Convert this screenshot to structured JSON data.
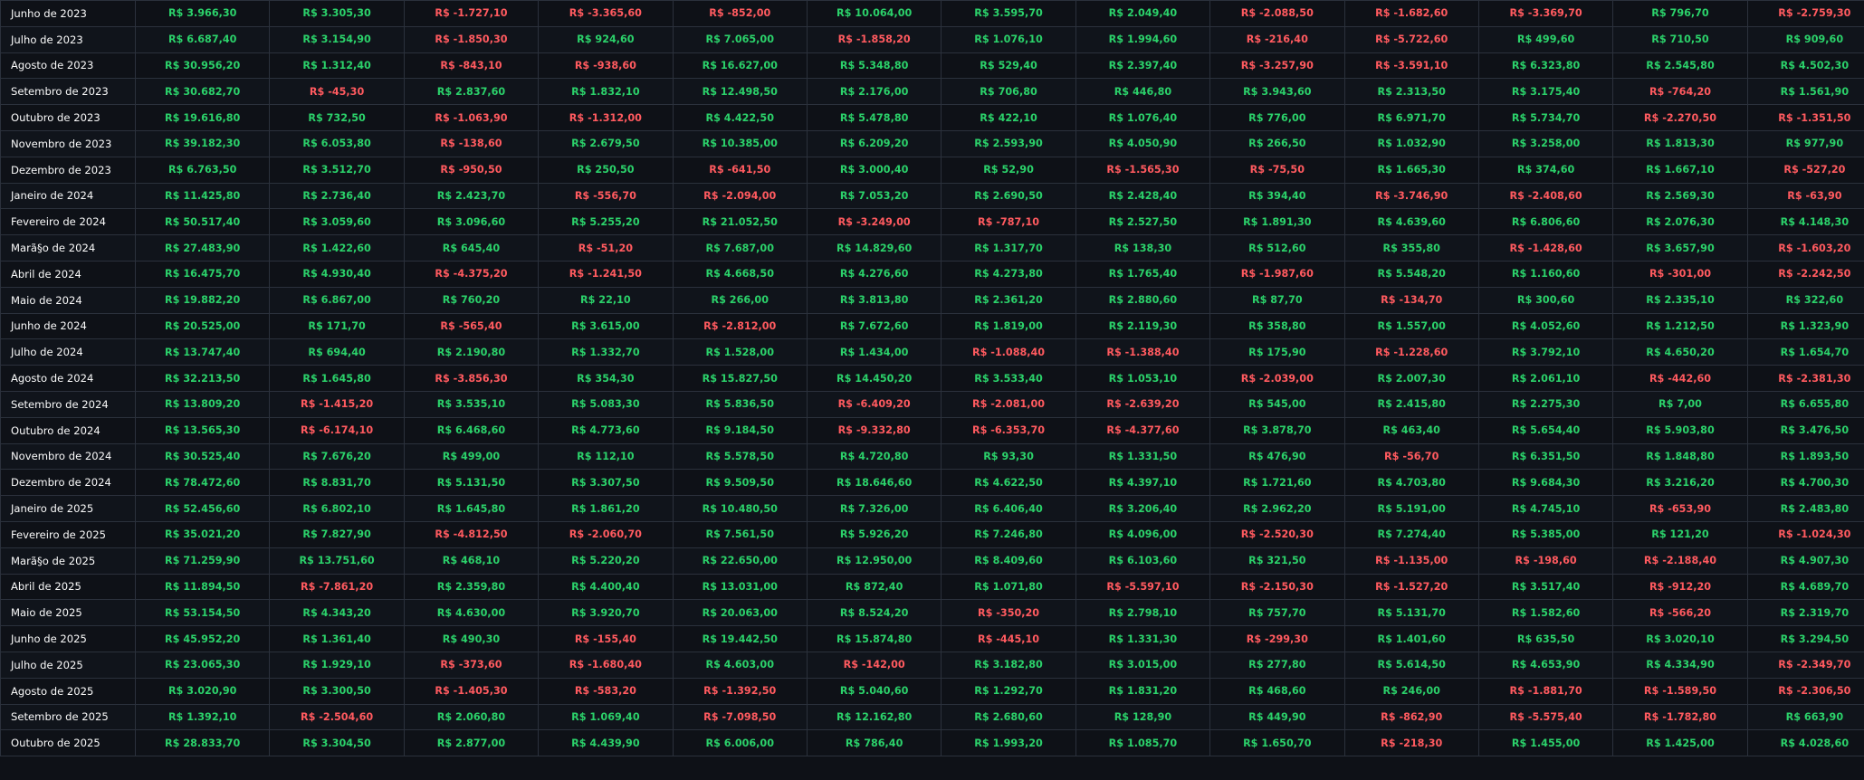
{
  "colors": {
    "background": "#0e1117",
    "positive": "#2bd16a",
    "negative": "#ff5a5f",
    "month_text": "#fafafa",
    "grid": "#2b313c"
  },
  "rows": [
    {
      "month": "Junho de 2023",
      "values": [
        "R$ 3.966,30",
        "R$ 3.305,30",
        "R$ -1.727,10",
        "R$ -3.365,60",
        "R$ -852,00",
        "R$ 10.064,00",
        "R$ 3.595,70",
        "R$ 2.049,40",
        "R$ -2.088,50",
        "R$ -1.682,60",
        "R$ -3.369,70",
        "R$ 796,70",
        "R$ -2.759,30"
      ]
    },
    {
      "month": "Julho de 2023",
      "values": [
        "R$ 6.687,40",
        "R$ 3.154,90",
        "R$ -1.850,30",
        "R$ 924,60",
        "R$ 7.065,00",
        "R$ -1.858,20",
        "R$ 1.076,10",
        "R$ 1.994,60",
        "R$ -216,40",
        "R$ -5.722,60",
        "R$ 499,60",
        "R$ 710,50",
        "R$ 909,60"
      ]
    },
    {
      "month": "Agosto de 2023",
      "values": [
        "R$ 30.956,20",
        "R$ 1.312,40",
        "R$ -843,10",
        "R$ -938,60",
        "R$ 16.627,00",
        "R$ 5.348,80",
        "R$ 529,40",
        "R$ 2.397,40",
        "R$ -3.257,90",
        "R$ -3.591,10",
        "R$ 6.323,80",
        "R$ 2.545,80",
        "R$ 4.502,30"
      ]
    },
    {
      "month": "Setembro de 2023",
      "values": [
        "R$ 30.682,70",
        "R$ -45,30",
        "R$ 2.837,60",
        "R$ 1.832,10",
        "R$ 12.498,50",
        "R$ 2.176,00",
        "R$ 706,80",
        "R$ 446,80",
        "R$ 3.943,60",
        "R$ 2.313,50",
        "R$ 3.175,40",
        "R$ -764,20",
        "R$ 1.561,90"
      ]
    },
    {
      "month": "Outubro de 2023",
      "values": [
        "R$ 19.616,80",
        "R$ 732,50",
        "R$ -1.063,90",
        "R$ -1.312,00",
        "R$ 4.422,50",
        "R$ 5.478,80",
        "R$ 422,10",
        "R$ 1.076,40",
        "R$ 776,00",
        "R$ 6.971,70",
        "R$ 5.734,70",
        "R$ -2.270,50",
        "R$ -1.351,50"
      ]
    },
    {
      "month": "Novembro de 2023",
      "values": [
        "R$ 39.182,30",
        "R$ 6.053,80",
        "R$ -138,60",
        "R$ 2.679,50",
        "R$ 10.385,00",
        "R$ 6.209,20",
        "R$ 2.593,90",
        "R$ 4.050,90",
        "R$ 266,50",
        "R$ 1.032,90",
        "R$ 3.258,00",
        "R$ 1.813,30",
        "R$ 977,90"
      ]
    },
    {
      "month": "Dezembro de 2023",
      "values": [
        "R$ 6.763,50",
        "R$ 3.512,70",
        "R$ -950,50",
        "R$ 250,50",
        "R$ -641,50",
        "R$ 3.000,40",
        "R$ 52,90",
        "R$ -1.565,30",
        "R$ -75,50",
        "R$ 1.665,30",
        "R$ 374,60",
        "R$ 1.667,10",
        "R$ -527,20"
      ]
    },
    {
      "month": "Janeiro de 2024",
      "values": [
        "R$ 11.425,80",
        "R$ 2.736,40",
        "R$ 2.423,70",
        "R$ -556,70",
        "R$ -2.094,00",
        "R$ 7.053,20",
        "R$ 2.690,50",
        "R$ 2.428,40",
        "R$ 394,40",
        "R$ -3.746,90",
        "R$ -2.408,60",
        "R$ 2.569,30",
        "R$ -63,90"
      ]
    },
    {
      "month": "Fevereiro de 2024",
      "values": [
        "R$ 50.517,40",
        "R$ 3.059,60",
        "R$ 3.096,60",
        "R$ 5.255,20",
        "R$ 21.052,50",
        "R$ -3.249,00",
        "R$ -787,10",
        "R$ 2.527,50",
        "R$ 1.891,30",
        "R$ 4.639,60",
        "R$ 6.806,60",
        "R$ 2.076,30",
        "R$ 4.148,30"
      ]
    },
    {
      "month": "Marã§o de 2024",
      "values": [
        "R$ 27.483,90",
        "R$ 1.422,60",
        "R$ 645,40",
        "R$ -51,20",
        "R$ 7.687,00",
        "R$ 14.829,60",
        "R$ 1.317,70",
        "R$ 138,30",
        "R$ 512,60",
        "R$ 355,80",
        "R$ -1.428,60",
        "R$ 3.657,90",
        "R$ -1.603,20"
      ]
    },
    {
      "month": "Abril de 2024",
      "values": [
        "R$ 16.475,70",
        "R$ 4.930,40",
        "R$ -4.375,20",
        "R$ -1.241,50",
        "R$ 4.668,50",
        "R$ 4.276,60",
        "R$ 4.273,80",
        "R$ 1.765,40",
        "R$ -1.987,60",
        "R$ 5.548,20",
        "R$ 1.160,60",
        "R$ -301,00",
        "R$ -2.242,50"
      ]
    },
    {
      "month": "Maio de 2024",
      "values": [
        "R$ 19.882,20",
        "R$ 6.867,00",
        "R$ 760,20",
        "R$ 22,10",
        "R$ 266,00",
        "R$ 3.813,80",
        "R$ 2.361,20",
        "R$ 2.880,60",
        "R$ 87,70",
        "R$ -134,70",
        "R$ 300,60",
        "R$ 2.335,10",
        "R$ 322,60"
      ]
    },
    {
      "month": "Junho de 2024",
      "values": [
        "R$ 20.525,00",
        "R$ 171,70",
        "R$ -565,40",
        "R$ 3.615,00",
        "R$ -2.812,00",
        "R$ 7.672,60",
        "R$ 1.819,00",
        "R$ 2.119,30",
        "R$ 358,80",
        "R$ 1.557,00",
        "R$ 4.052,60",
        "R$ 1.212,50",
        "R$ 1.323,90"
      ]
    },
    {
      "month": "Julho de 2024",
      "values": [
        "R$ 13.747,40",
        "R$ 694,40",
        "R$ 2.190,80",
        "R$ 1.332,70",
        "R$ 1.528,00",
        "R$ 1.434,00",
        "R$ -1.088,40",
        "R$ -1.388,40",
        "R$ 175,90",
        "R$ -1.228,60",
        "R$ 3.792,10",
        "R$ 4.650,20",
        "R$ 1.654,70"
      ]
    },
    {
      "month": "Agosto de 2024",
      "values": [
        "R$ 32.213,50",
        "R$ 1.645,80",
        "R$ -3.856,30",
        "R$ 354,30",
        "R$ 15.827,50",
        "R$ 14.450,20",
        "R$ 3.533,40",
        "R$ 1.053,10",
        "R$ -2.039,00",
        "R$ 2.007,30",
        "R$ 2.061,10",
        "R$ -442,60",
        "R$ -2.381,30"
      ]
    },
    {
      "month": "Setembro de 2024",
      "values": [
        "R$ 13.809,20",
        "R$ -1.415,20",
        "R$ 3.535,10",
        "R$ 5.083,30",
        "R$ 5.836,50",
        "R$ -6.409,20",
        "R$ -2.081,00",
        "R$ -2.639,20",
        "R$ 545,00",
        "R$ 2.415,80",
        "R$ 2.275,30",
        "R$ 7,00",
        "R$ 6.655,80"
      ]
    },
    {
      "month": "Outubro de 2024",
      "values": [
        "R$ 13.565,30",
        "R$ -6.174,10",
        "R$ 6.468,60",
        "R$ 4.773,60",
        "R$ 9.184,50",
        "R$ -9.332,80",
        "R$ -6.353,70",
        "R$ -4.377,60",
        "R$ 3.878,70",
        "R$ 463,40",
        "R$ 5.654,40",
        "R$ 5.903,80",
        "R$ 3.476,50"
      ]
    },
    {
      "month": "Novembro de 2024",
      "values": [
        "R$ 30.525,40",
        "R$ 7.676,20",
        "R$ 499,00",
        "R$ 112,10",
        "R$ 5.578,50",
        "R$ 4.720,80",
        "R$ 93,30",
        "R$ 1.331,50",
        "R$ 476,90",
        "R$ -56,70",
        "R$ 6.351,50",
        "R$ 1.848,80",
        "R$ 1.893,50"
      ]
    },
    {
      "month": "Dezembro de 2024",
      "values": [
        "R$ 78.472,60",
        "R$ 8.831,70",
        "R$ 5.131,50",
        "R$ 3.307,50",
        "R$ 9.509,50",
        "R$ 18.646,60",
        "R$ 4.622,50",
        "R$ 4.397,10",
        "R$ 1.721,60",
        "R$ 4.703,80",
        "R$ 9.684,30",
        "R$ 3.216,20",
        "R$ 4.700,30"
      ]
    },
    {
      "month": "Janeiro de 2025",
      "values": [
        "R$ 52.456,60",
        "R$ 6.802,10",
        "R$ 1.645,80",
        "R$ 1.861,20",
        "R$ 10.480,50",
        "R$ 7.326,00",
        "R$ 6.406,40",
        "R$ 3.206,40",
        "R$ 2.962,20",
        "R$ 5.191,00",
        "R$ 4.745,10",
        "R$ -653,90",
        "R$ 2.483,80"
      ]
    },
    {
      "month": "Fevereiro de 2025",
      "values": [
        "R$ 35.021,20",
        "R$ 7.827,90",
        "R$ -4.812,50",
        "R$ -2.060,70",
        "R$ 7.561,50",
        "R$ 5.926,20",
        "R$ 7.246,80",
        "R$ 4.096,00",
        "R$ -2.520,30",
        "R$ 7.274,40",
        "R$ 5.385,00",
        "R$ 121,20",
        "R$ -1.024,30"
      ]
    },
    {
      "month": "Marã§o de 2025",
      "values": [
        "R$ 71.259,90",
        "R$ 13.751,60",
        "R$ 468,10",
        "R$ 5.220,20",
        "R$ 22.650,00",
        "R$ 12.950,00",
        "R$ 8.409,60",
        "R$ 6.103,60",
        "R$ 321,50",
        "R$ -1.135,00",
        "R$ -198,60",
        "R$ -2.188,40",
        "R$ 4.907,30"
      ]
    },
    {
      "month": "Abril de 2025",
      "values": [
        "R$ 11.894,50",
        "R$ -7.861,20",
        "R$ 2.359,80",
        "R$ 4.400,40",
        "R$ 13.031,00",
        "R$ 872,40",
        "R$ 1.071,80",
        "R$ -5.597,10",
        "R$ -2.150,30",
        "R$ -1.527,20",
        "R$ 3.517,40",
        "R$ -912,20",
        "R$ 4.689,70"
      ]
    },
    {
      "month": "Maio de 2025",
      "values": [
        "R$ 53.154,50",
        "R$ 4.343,20",
        "R$ 4.630,00",
        "R$ 3.920,70",
        "R$ 20.063,00",
        "R$ 8.524,20",
        "R$ -350,20",
        "R$ 2.798,10",
        "R$ 757,70",
        "R$ 5.131,70",
        "R$ 1.582,60",
        "R$ -566,20",
        "R$ 2.319,70"
      ]
    },
    {
      "month": "Junho de 2025",
      "values": [
        "R$ 45.952,20",
        "R$ 1.361,40",
        "R$ 490,30",
        "R$ -155,40",
        "R$ 19.442,50",
        "R$ 15.874,80",
        "R$ -445,10",
        "R$ 1.331,30",
        "R$ -299,30",
        "R$ 1.401,60",
        "R$ 635,50",
        "R$ 3.020,10",
        "R$ 3.294,50"
      ]
    },
    {
      "month": "Julho de 2025",
      "values": [
        "R$ 23.065,30",
        "R$ 1.929,10",
        "R$ -373,60",
        "R$ -1.680,40",
        "R$ 4.603,00",
        "R$ -142,00",
        "R$ 3.182,80",
        "R$ 3.015,00",
        "R$ 277,80",
        "R$ 5.614,50",
        "R$ 4.653,90",
        "R$ 4.334,90",
        "R$ -2.349,70"
      ]
    },
    {
      "month": "Agosto de 2025",
      "values": [
        "R$ 3.020,90",
        "R$ 3.300,50",
        "R$ -1.405,30",
        "R$ -583,20",
        "R$ -1.392,50",
        "R$ 5.040,60",
        "R$ 1.292,70",
        "R$ 1.831,20",
        "R$ 468,60",
        "R$ 246,00",
        "R$ -1.881,70",
        "R$ -1.589,50",
        "R$ -2.306,50"
      ]
    },
    {
      "month": "Setembro de 2025",
      "values": [
        "R$ 1.392,10",
        "R$ -2.504,60",
        "R$ 2.060,80",
        "R$ 1.069,40",
        "R$ -7.098,50",
        "R$ 12.162,80",
        "R$ 2.680,60",
        "R$ 128,90",
        "R$ 449,90",
        "R$ -862,90",
        "R$ -5.575,40",
        "R$ -1.782,80",
        "R$ 663,90"
      ]
    },
    {
      "month": "Outubro de 2025",
      "values": [
        "R$ 28.833,70",
        "R$ 3.304,50",
        "R$ 2.877,00",
        "R$ 4.439,90",
        "R$ 6.006,00",
        "R$ 786,40",
        "R$ 1.993,20",
        "R$ 1.085,70",
        "R$ 1.650,70",
        "R$ -218,30",
        "R$ 1.455,00",
        "R$ 1.425,00",
        "R$ 4.028,60"
      ]
    }
  ]
}
